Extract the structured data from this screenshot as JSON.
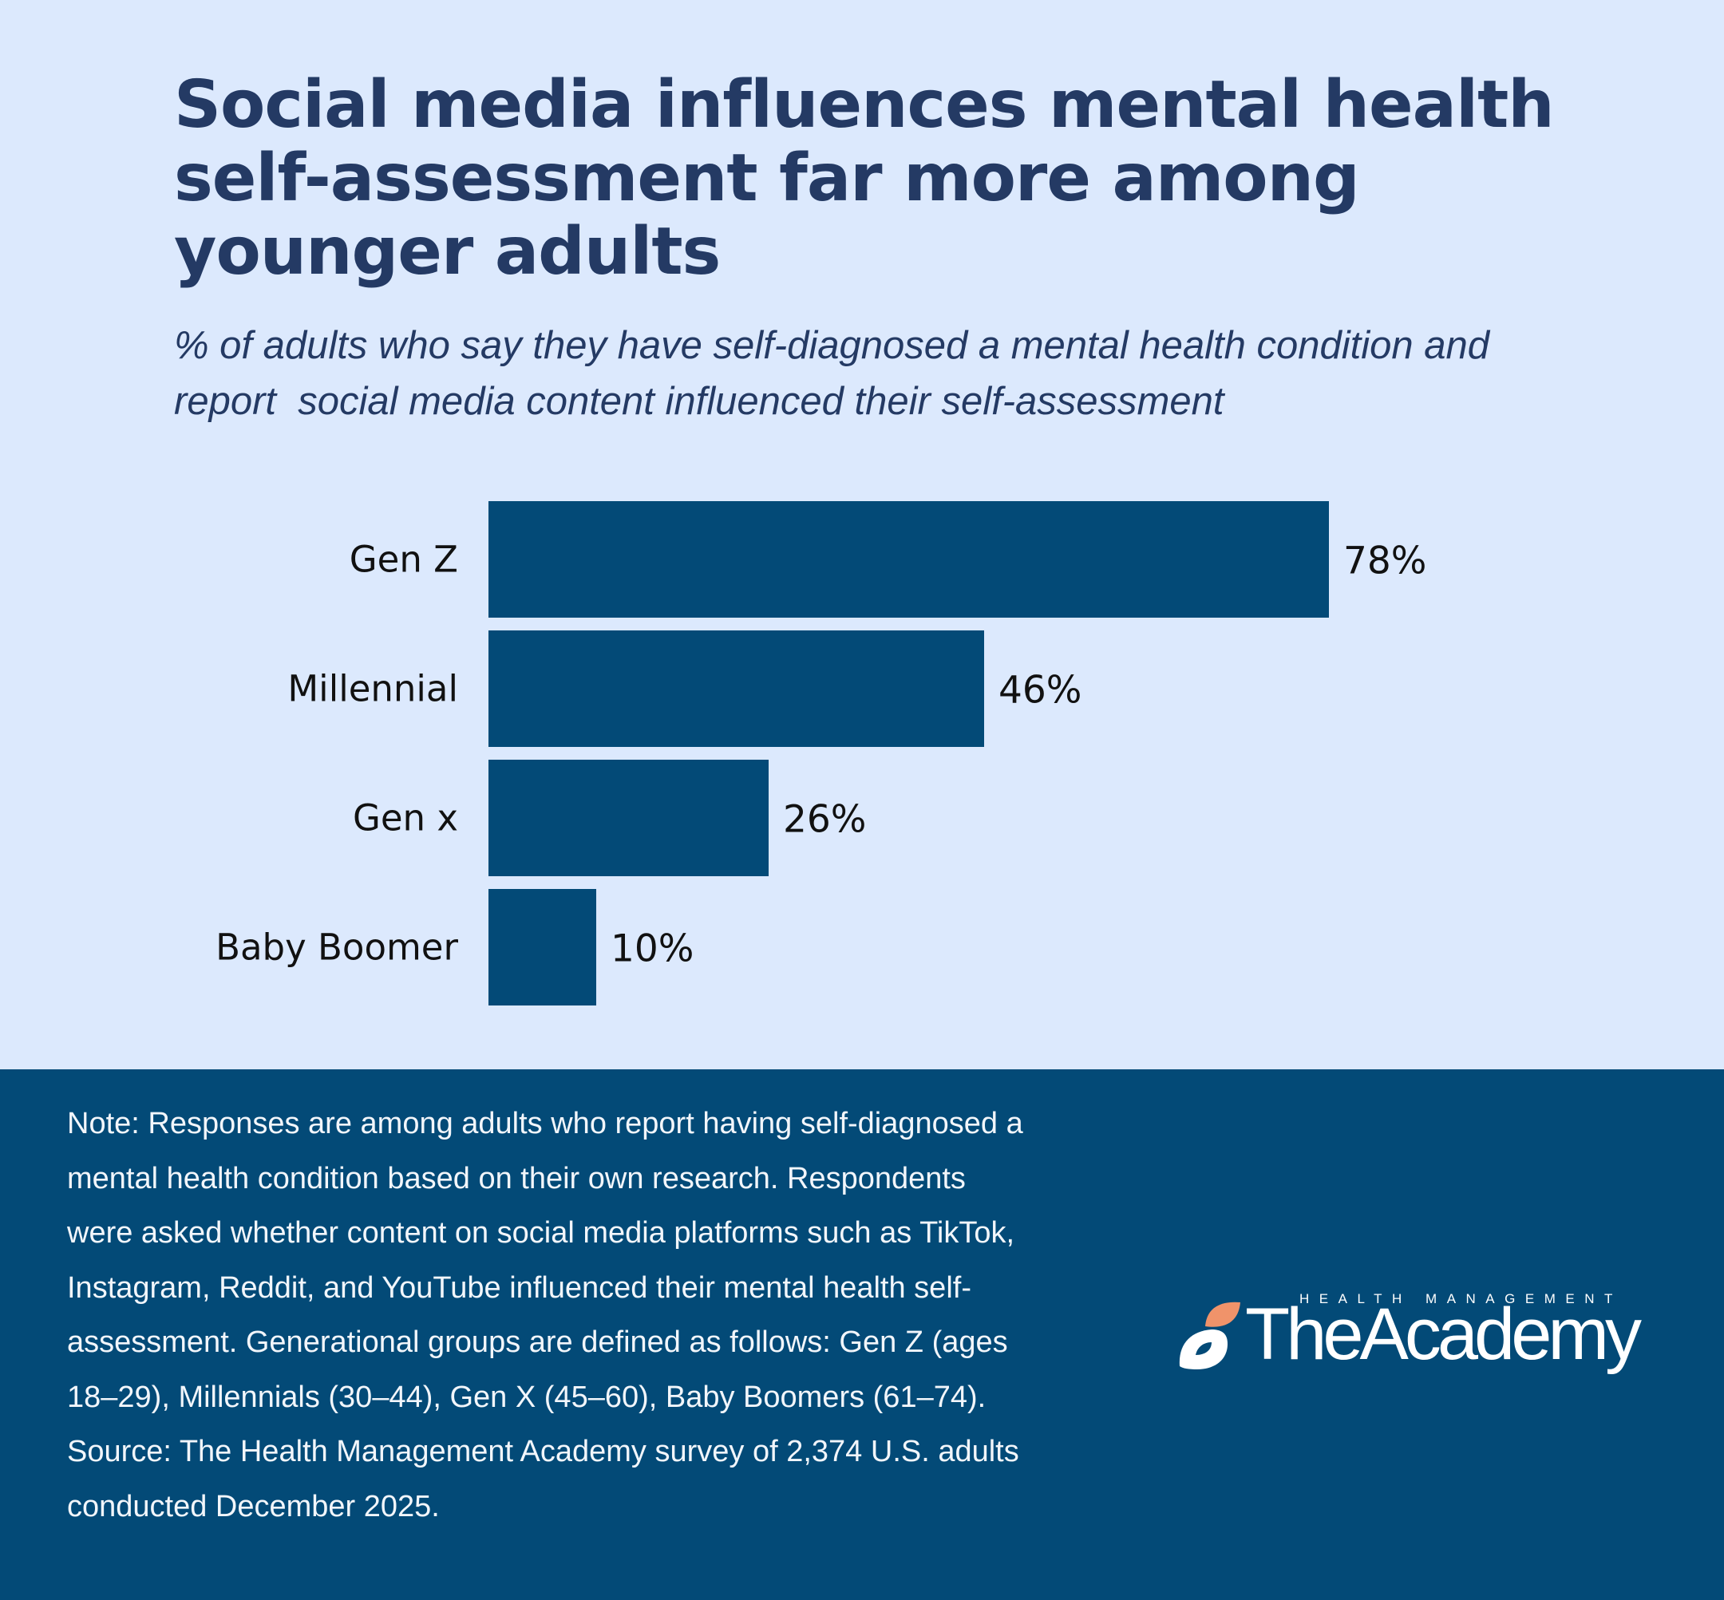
{
  "title": "Social media influences mental health self-assessment far more among younger adults",
  "subtitle": "% of adults who say they have self-diagnosed a mental health condition and report  social media content influenced their self-assessment",
  "chart_data": {
    "type": "bar",
    "orientation": "horizontal",
    "categories": [
      "Gen Z",
      "Millennial",
      "Gen x",
      "Baby Boomer"
    ],
    "values": [
      78,
      46,
      26,
      10
    ],
    "value_labels": [
      "78%",
      "46%",
      "26%",
      "10%"
    ],
    "unit": "%",
    "xlim": [
      0,
      100
    ],
    "grid": false,
    "legend": "none",
    "bar_color": "#034a77"
  },
  "note": {
    "text": "Note: Responses are among adults who report having self-diagnosed a mental health condition based on their own research. Respondents were asked whether content on social media platforms such as TikTok, Instagram, Reddit, and YouTube influenced their mental health self-assessment. Generational groups are defined as follows: Gen Z (ages 18–29), Millennials (30–44), Gen X (45–60), Baby Boomers (61–74).",
    "source": "Source: The Health Management Academy survey of 2,374 U.S. adults conducted December 2025."
  },
  "logo": {
    "tagline": "HEALTH MANAGEMENT",
    "name": "TheAcademy",
    "accent_color": "#f0936a"
  },
  "colors": {
    "background": "#dce9fd",
    "title": "#243a64",
    "footer": "#034a77"
  }
}
